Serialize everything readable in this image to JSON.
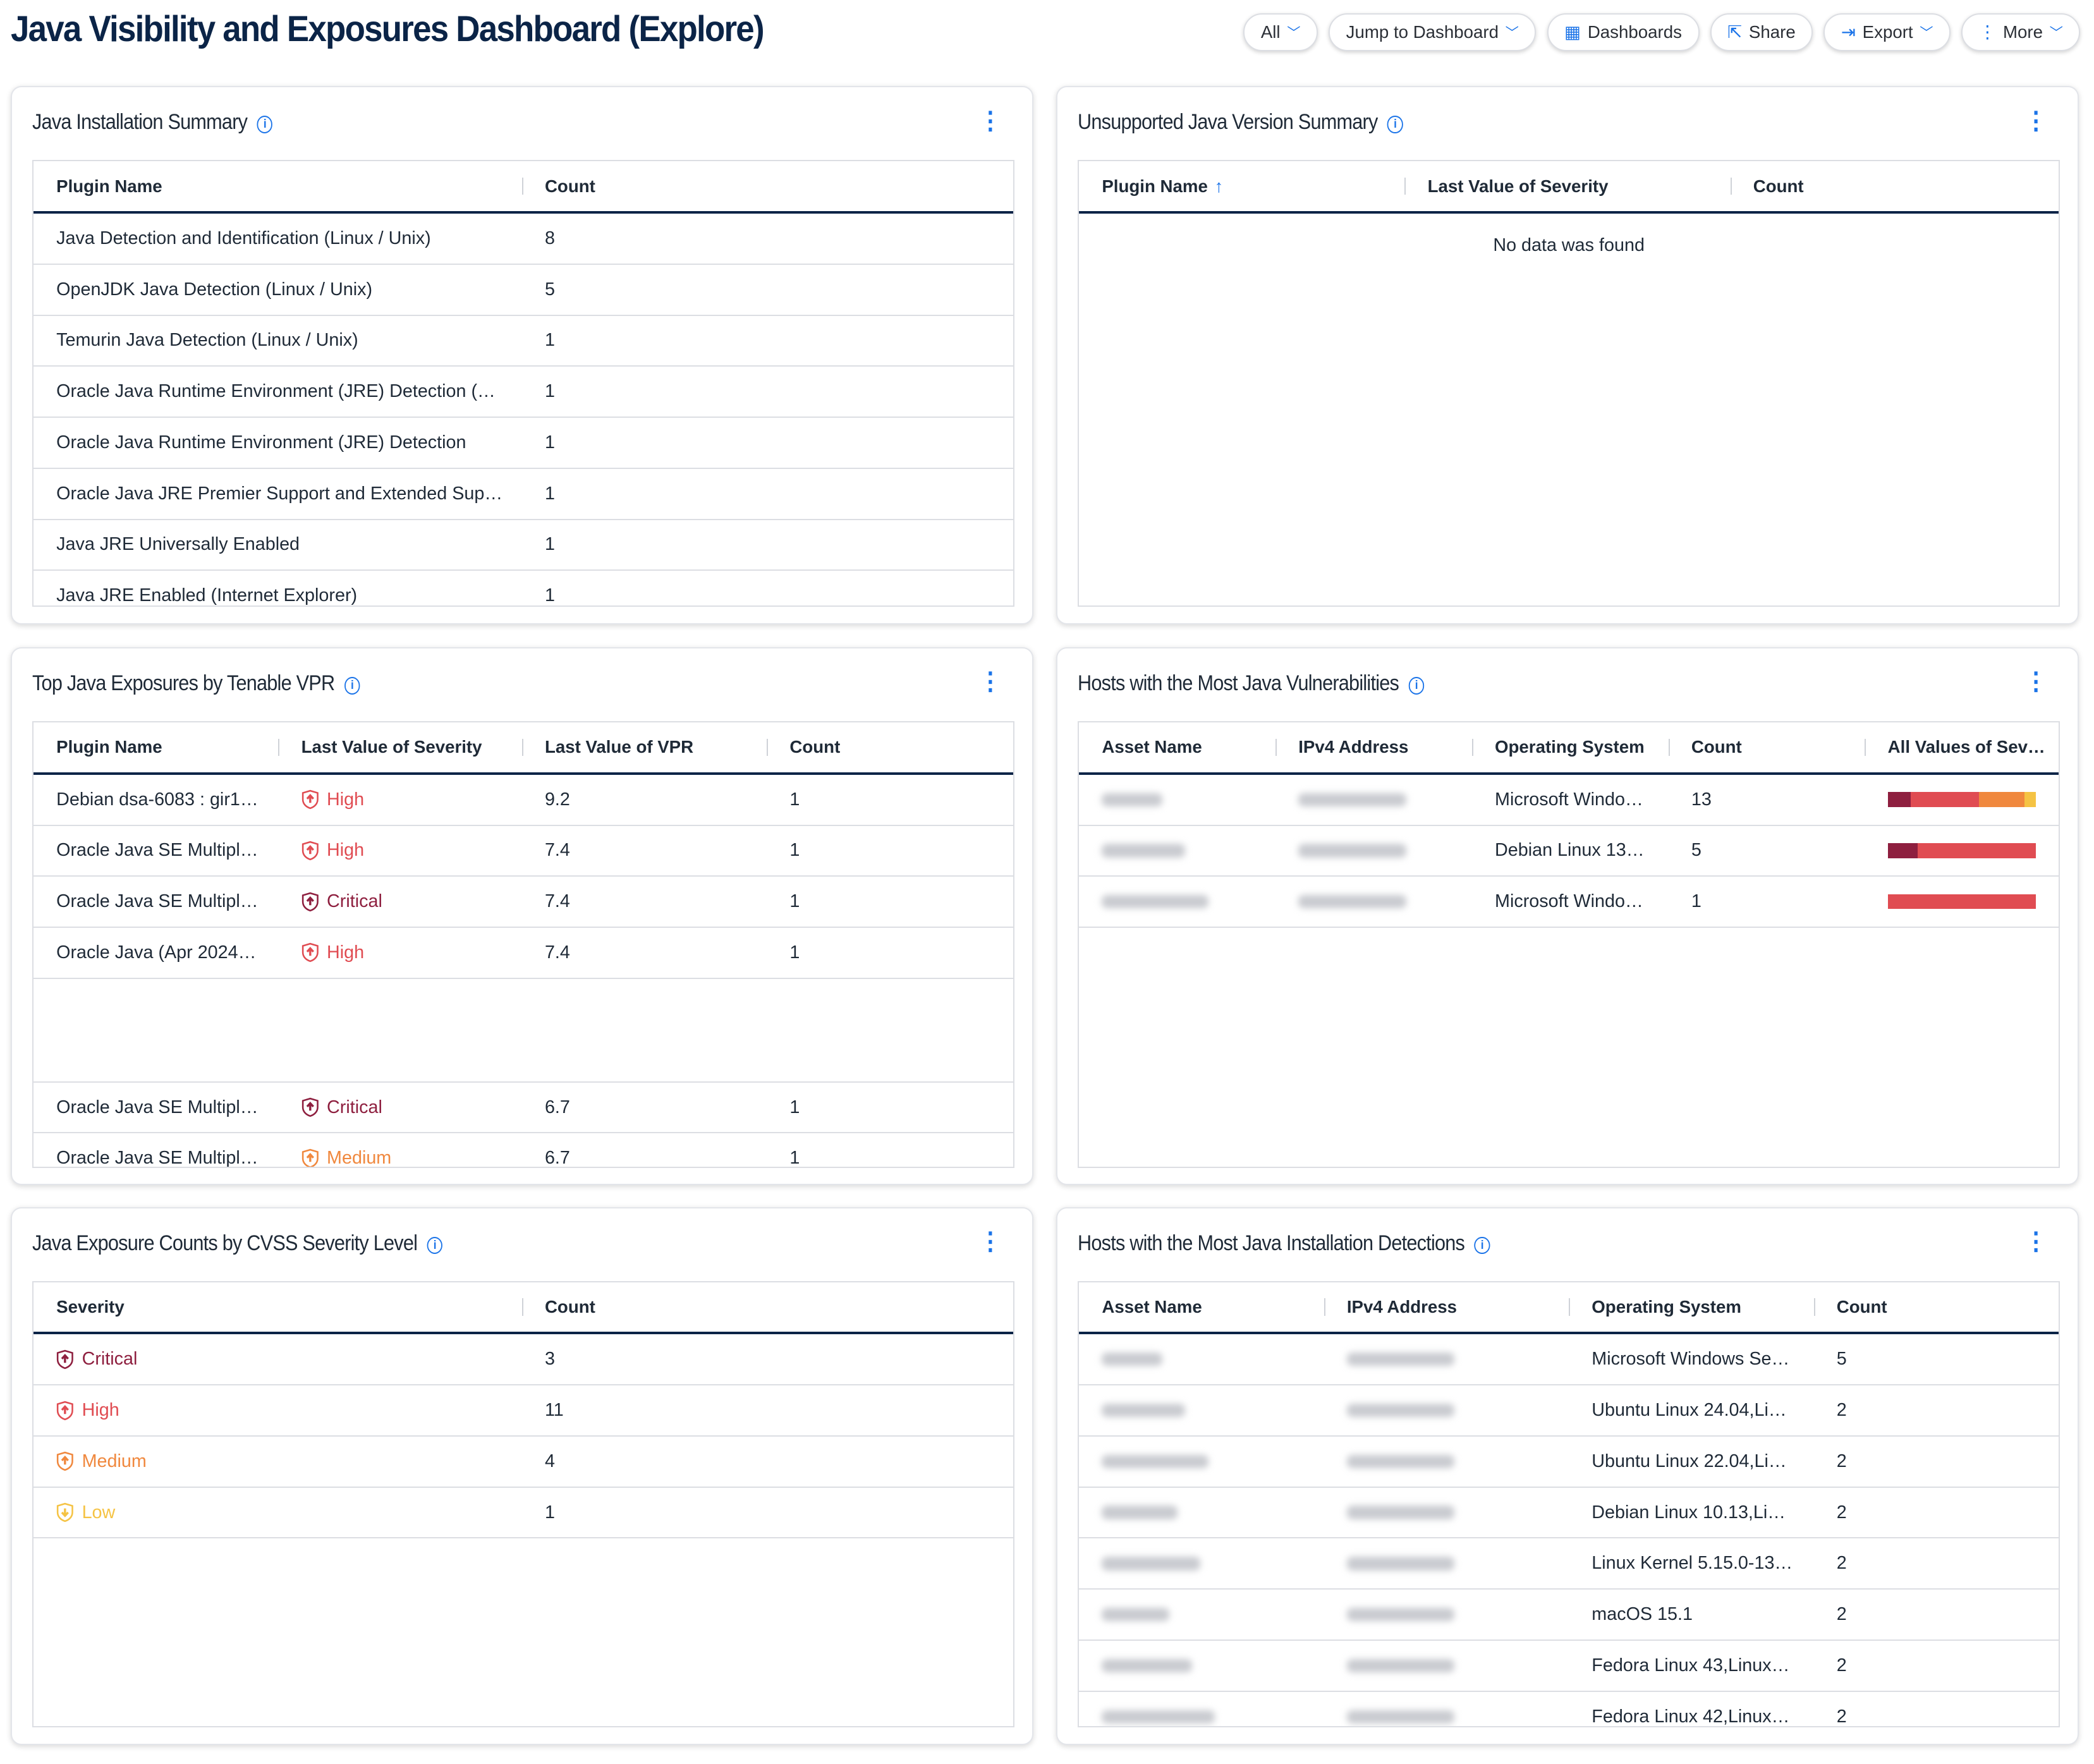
{
  "page": {
    "title": "Java Visibility and Exposures Dashboard (Explore)"
  },
  "toolbar": [
    {
      "label": "All",
      "icon": "",
      "chevron": true
    },
    {
      "label": "Jump to Dashboard",
      "icon": "",
      "chevron": true
    },
    {
      "label": "Dashboards",
      "icon": "grid-icon",
      "chevron": false
    },
    {
      "label": "Share",
      "icon": "share-icon",
      "chevron": false
    },
    {
      "label": "Export",
      "icon": "export-icon",
      "chevron": true
    },
    {
      "label": "More",
      "icon": "more-vertical-icon",
      "chevron": true
    }
  ],
  "severity_colors": {
    "Critical": "#8e1f3f",
    "High": "#e04c52",
    "Medium": "#f0883e",
    "Low": "#f5c344"
  },
  "cards": [
    {
      "title": "Java Installation Summary",
      "columns": [
        "Plugin Name",
        "Count"
      ],
      "rows": [
        [
          "Java Detection and Identification (Linux / Unix)",
          "8"
        ],
        [
          "OpenJDK Java Detection (Linux / Unix)",
          "5"
        ],
        [
          "Temurin Java Detection (Linux / Unix)",
          "1"
        ],
        [
          "Oracle Java Runtime Environment (JRE) Detection (…",
          "1"
        ],
        [
          "Oracle Java Runtime Environment (JRE) Detection",
          "1"
        ],
        [
          "Oracle Java JRE Premier Support and Extended Sup…",
          "1"
        ],
        [
          "Java JRE Universally Enabled",
          "1"
        ],
        [
          "Java JRE Enabled (Internet Explorer)",
          "1"
        ]
      ]
    },
    {
      "title": "Unsupported Java Version Summary",
      "columns": [
        "Plugin Name",
        "Last Value of Severity",
        "Count"
      ],
      "sort_column": "Plugin Name",
      "sort": "ascending",
      "empty_text": "No data was found",
      "rows": []
    },
    {
      "title": "Top Java Exposures by Tenable VPR",
      "columns": [
        "Plugin Name",
        "Last Value of Severity",
        "Last Value of VPR",
        "Count"
      ],
      "rows": [
        [
          "Debian dsa-6083 : gir1…",
          "High",
          "9.2",
          "1"
        ],
        [
          "Oracle Java SE Multipl…",
          "High",
          "7.4",
          "1"
        ],
        [
          "Oracle Java SE Multipl…",
          "Critical",
          "7.4",
          "1"
        ],
        [
          "Oracle Java (Apr 2024…",
          "High",
          "7.4",
          "1"
        ],
        null,
        [
          "Oracle Java SE Multipl…",
          "Critical",
          "6.7",
          "1"
        ],
        [
          "Oracle Java SE Multipl…",
          "Medium",
          "6.7",
          "1"
        ]
      ]
    },
    {
      "title": "Hosts with the Most Java Vulnerabilities",
      "columns": [
        "Asset Name",
        "IPv4 Address",
        "Operating System",
        "Count",
        "All Values of Sev…"
      ],
      "rows": [
        {
          "os": "Microsoft Windo…",
          "count": "13",
          "severity_counts": {
            "Critical": 2,
            "High": 6,
            "Medium": 4,
            "Low": 1
          }
        },
        {
          "os": "Debian Linux 13…",
          "count": "5",
          "severity_counts": {
            "Critical": 1,
            "High": 4
          }
        },
        {
          "os": "Microsoft Windo…",
          "count": "1",
          "severity_counts": {
            "High": 1
          }
        }
      ]
    },
    {
      "title": "Java Exposure Counts by CVSS Severity Level",
      "columns": [
        "Severity",
        "Count"
      ],
      "rows": [
        [
          "Critical",
          "3"
        ],
        [
          "High",
          "11"
        ],
        [
          "Medium",
          "4"
        ],
        [
          "Low",
          "1"
        ]
      ]
    },
    {
      "title": "Hosts with the Most Java Installation Detections",
      "columns": [
        "Asset Name",
        "IPv4 Address",
        "Operating System",
        "Count"
      ],
      "rows": [
        {
          "os": "Microsoft Windows Se…",
          "count": "5"
        },
        {
          "os": "Ubuntu Linux 24.04,Li…",
          "count": "2"
        },
        {
          "os": "Ubuntu Linux 22.04,Li…",
          "count": "2"
        },
        {
          "os": "Debian Linux 10.13,Li…",
          "count": "2"
        },
        {
          "os": "Linux Kernel 5.15.0-13…",
          "count": "2"
        },
        {
          "os": "macOS 15.1",
          "count": "2"
        },
        {
          "os": "Fedora Linux 43,Linux…",
          "count": "2"
        },
        {
          "os": "Fedora Linux 42,Linux…",
          "count": "2"
        }
      ]
    }
  ]
}
